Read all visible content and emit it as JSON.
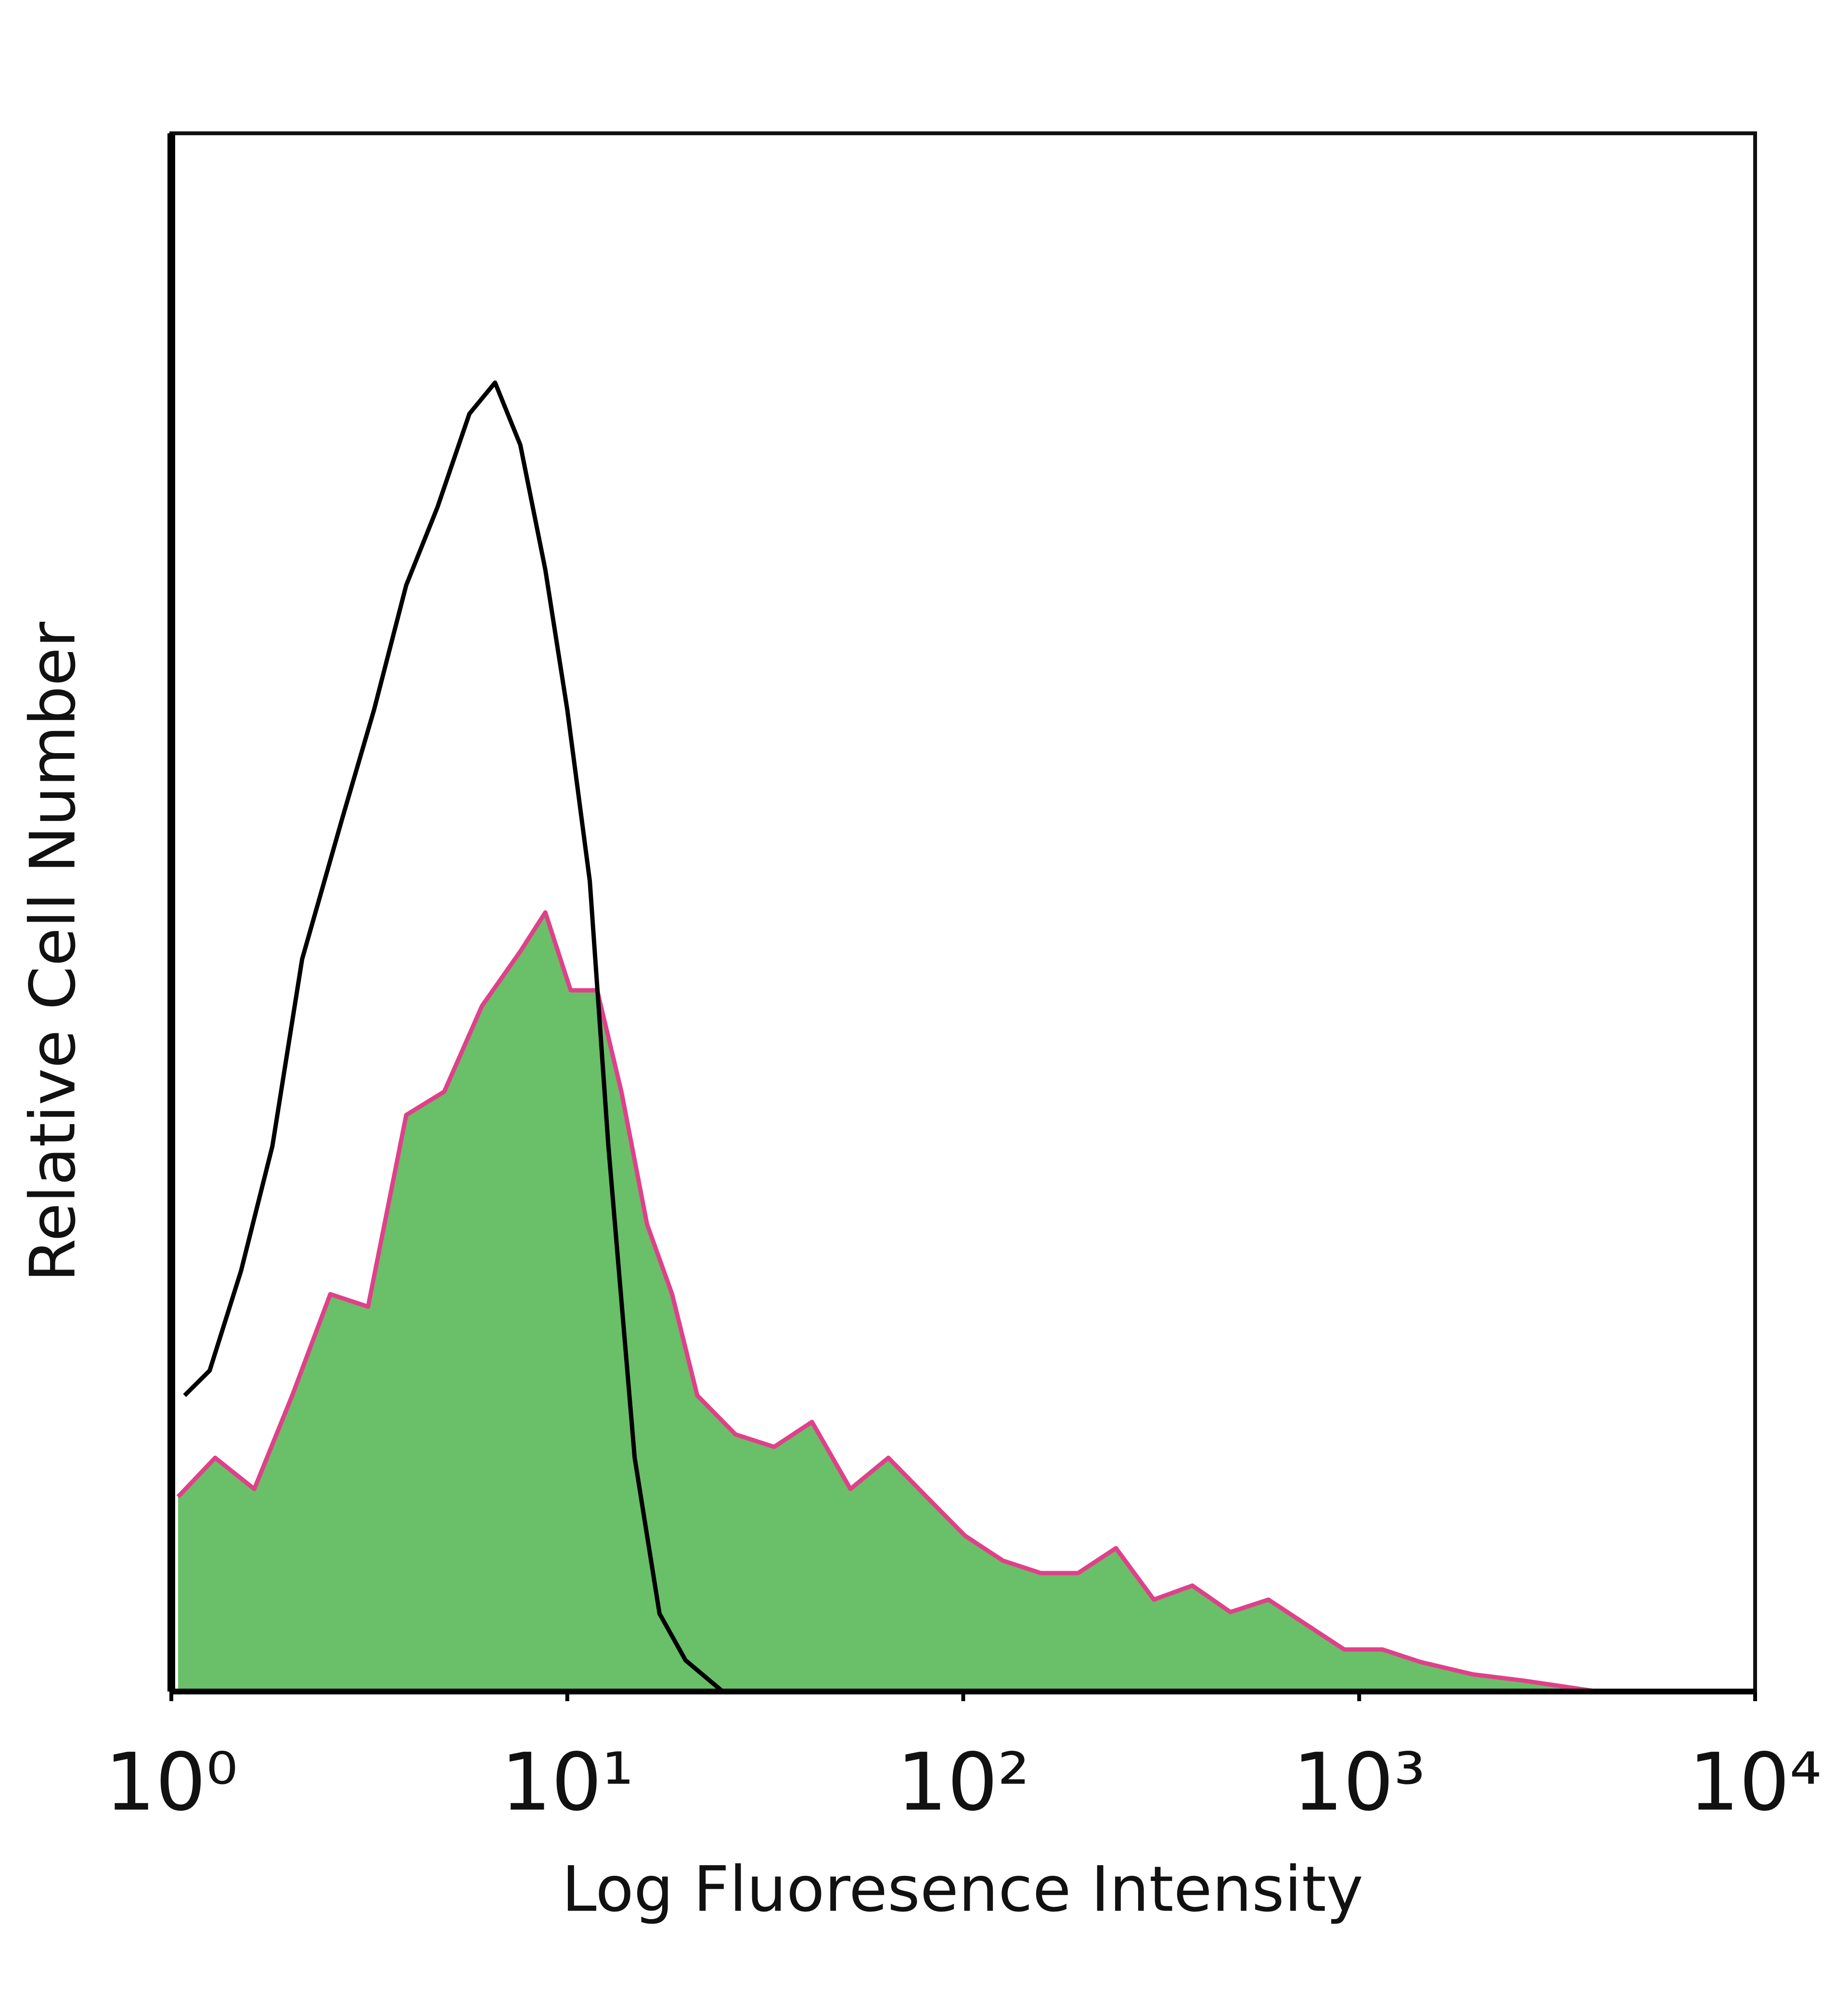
{
  "chart_data": {
    "type": "histogram-overlay",
    "x_label": "Log Fluoresence Intensity",
    "y_label": "Relative Cell Number",
    "log_x": true,
    "xlim": [
      1,
      10000
    ],
    "ylim": [
      0,
      100
    ],
    "xticks": [
      {
        "value": 1,
        "label": "10⁰"
      },
      {
        "value": 10,
        "label": "10¹"
      },
      {
        "value": 100,
        "label": "10²"
      },
      {
        "value": 1000,
        "label": "10³"
      },
      {
        "value": 10000,
        "label": "10⁴"
      }
    ],
    "series": [
      {
        "color": "#e0408a",
        "fill": "#6abf69",
        "x": [
          1.04,
          1.29,
          1.62,
          2.02,
          2.52,
          3.14,
          3.92,
          4.89,
          6.09,
          7.61,
          8.8,
          10.2,
          11.9,
          13.7,
          15.9,
          18.4,
          21.3,
          26.6,
          33.3,
          41.5,
          51.9,
          64.7,
          80.8,
          101,
          126,
          157,
          195,
          243,
          303,
          379,
          473,
          590,
          735,
          917,
          1145,
          1427,
          1940,
          2600,
          4000
        ],
        "values": [
          12.5,
          15,
          13,
          19,
          25.5,
          24.7,
          37,
          38.5,
          44,
          47.5,
          50,
          45,
          45,
          38.5,
          30,
          25.5,
          19,
          16.5,
          15.7,
          17.3,
          13,
          15,
          12.5,
          10,
          8.4,
          7.6,
          7.6,
          9.2,
          5.9,
          6.8,
          5.1,
          5.9,
          4.3,
          2.7,
          2.7,
          1.9,
          1.1,
          0.7,
          0
        ]
      },
      {
        "color": "#000000",
        "x": [
          1.08,
          1.25,
          1.5,
          1.8,
          2.14,
          2.7,
          3.25,
          3.92,
          4.7,
          5.66,
          6.57,
          7.61,
          8.8,
          10,
          11.4,
          12.7,
          14.8,
          17.1,
          19.9,
          24.7
        ],
        "values": [
          19,
          20.6,
          27,
          35,
          47,
          56,
          63,
          71,
          76,
          82,
          84,
          80,
          72,
          63,
          52,
          35,
          15,
          5,
          2,
          0
        ]
      }
    ]
  }
}
